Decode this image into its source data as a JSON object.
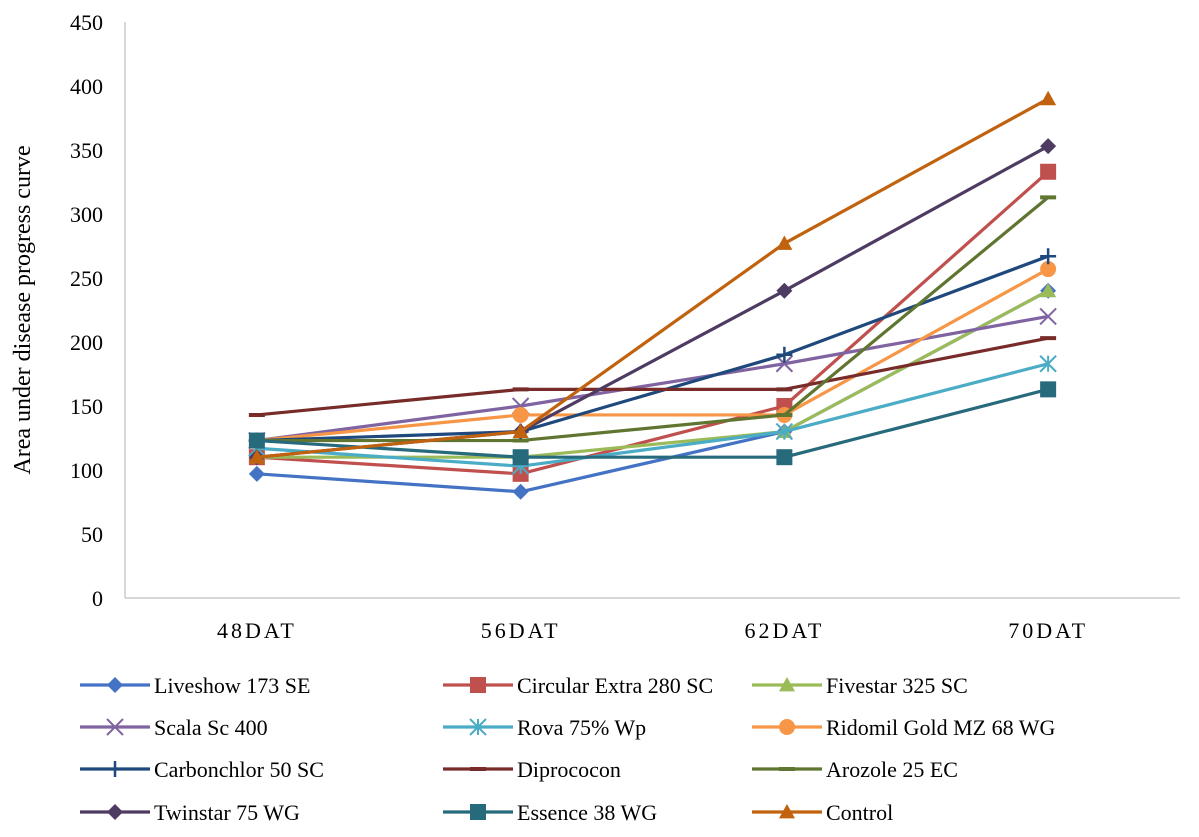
{
  "chart_data": {
    "type": "line",
    "title": "",
    "xlabel": "",
    "ylabel": "Area under disease progress curve",
    "ylim": [
      0,
      450
    ],
    "yticks": [
      0,
      50,
      100,
      150,
      200,
      250,
      300,
      350,
      400,
      450
    ],
    "categories": [
      "48DAT",
      "56DAT",
      "62DAT",
      "70DAT"
    ],
    "grid": false,
    "legend_position": "bottom",
    "series": [
      {
        "name": "Liveshow 173 SE",
        "color": "#4472C4",
        "marker": "diamond",
        "values": [
          97,
          83,
          130,
          240
        ]
      },
      {
        "name": "Circular Extra 280 SC",
        "color": "#C0504D",
        "marker": "square",
        "values": [
          110,
          97,
          150,
          333
        ]
      },
      {
        "name": "Fivestar 325 SC",
        "color": "#9BBB59",
        "marker": "triangle",
        "values": [
          110,
          110,
          130,
          240
        ]
      },
      {
        "name": "Scala Sc 400",
        "color": "#8064A2",
        "marker": "x",
        "values": [
          123,
          150,
          183,
          220
        ]
      },
      {
        "name": "Rova 75% Wp",
        "color": "#4BACC6",
        "marker": "star",
        "values": [
          117,
          103,
          130,
          183
        ]
      },
      {
        "name": "Ridomil Gold MZ 68 WG",
        "color": "#F79646",
        "marker": "circle",
        "values": [
          123,
          143,
          143,
          257
        ]
      },
      {
        "name": "Carbonchlor 50 SC",
        "color": "#1F497D",
        "marker": "plus",
        "values": [
          123,
          130,
          190,
          267
        ]
      },
      {
        "name": "Diprococon",
        "color": "#772C2A",
        "marker": "dash",
        "values": [
          143,
          163,
          163,
          203
        ]
      },
      {
        "name": "Arozole 25 EC",
        "color": "#5F7530",
        "marker": "dash",
        "values": [
          123,
          123,
          143,
          313
        ]
      },
      {
        "name": "Twinstar 75 WG",
        "color": "#4D3B62",
        "marker": "diamond",
        "values": [
          110,
          130,
          240,
          353
        ]
      },
      {
        "name": "Essence 38 WG",
        "color": "#276A7C",
        "marker": "square",
        "values": [
          123,
          110,
          110,
          163
        ]
      },
      {
        "name": "Control",
        "color": "#C0620E",
        "marker": "triangle",
        "values": [
          110,
          130,
          277,
          390
        ]
      }
    ]
  }
}
